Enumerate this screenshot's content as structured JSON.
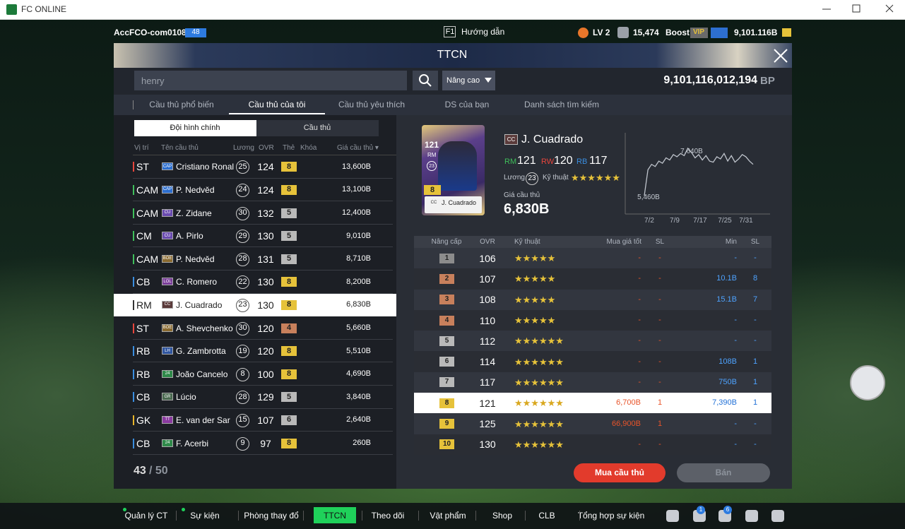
{
  "window": {
    "title": "FC ONLINE"
  },
  "topbar": {
    "account": "AccFCO-com0108c",
    "account_badge": "48",
    "help_key": "F1",
    "help": "Hướng dẫn",
    "level": "LV 2",
    "coins": "15,474",
    "boost": "Boost",
    "vip": "VIP",
    "bp": "9,101.116B"
  },
  "panel": {
    "title": "TTCN",
    "search": "henry",
    "search_mode": "Nâng cao",
    "balance": "9,101,116,012,194",
    "balance_unit": "BP"
  },
  "tabs": {
    "items": [
      "Cầu thủ phổ biến",
      "Cầu thủ của tôi",
      "Cầu thủ yêu thích",
      "DS của bạn",
      "Danh sách tìm kiếm"
    ],
    "active": 1
  },
  "subtabs": {
    "items": [
      "Đội hình chính",
      "Cầu thủ"
    ],
    "active": 0
  },
  "list": {
    "columns": [
      "Vị trí",
      "Tên cầu thủ",
      "Lương",
      "OVR",
      "Thẻ",
      "Khóa",
      "Giá cầu thủ"
    ],
    "selected": 6,
    "rows": [
      {
        "pos": "ST",
        "pos_color": "#e8453c",
        "season": "CAP",
        "season_color": "#2d6fd0",
        "name": "Cristiano Ronaldo",
        "salary": 25,
        "ovr": 124,
        "grade": 8,
        "grade_color": "#e6c23a",
        "price": "13,600B"
      },
      {
        "pos": "CAM",
        "pos_color": "#3fbf5a",
        "season": "CAP",
        "season_color": "#2d6fd0",
        "name": "P. Nedvěd",
        "salary": 24,
        "ovr": 124,
        "grade": 8,
        "grade_color": "#e6c23a",
        "price": "13,100B"
      },
      {
        "pos": "CAM",
        "pos_color": "#3fbf5a",
        "season": "CU",
        "season_color": "#6a4bb0",
        "name": "Z. Zidane",
        "salary": 30,
        "ovr": 132,
        "grade": 5,
        "grade_color": "#b9b9b9",
        "price": "12,400B"
      },
      {
        "pos": "CM",
        "pos_color": "#3fbf5a",
        "season": "CU",
        "season_color": "#6a4bb0",
        "name": "A. Pirlo",
        "salary": 29,
        "ovr": 130,
        "grade": 5,
        "grade_color": "#b9b9b9",
        "price": "9,010B"
      },
      {
        "pos": "CAM",
        "pos_color": "#3fbf5a",
        "season": "BOE",
        "season_color": "#8a6a30",
        "name": "P. Nedvěd",
        "salary": 28,
        "ovr": 131,
        "grade": 5,
        "grade_color": "#b9b9b9",
        "price": "8,710B"
      },
      {
        "pos": "CB",
        "pos_color": "#3a8ee0",
        "season": "LOL",
        "season_color": "#7a3d9a",
        "name": "C. Romero",
        "salary": 22,
        "ovr": 130,
        "grade": 8,
        "grade_color": "#e6c23a",
        "price": "8,200B"
      },
      {
        "pos": "RM",
        "pos_color": "#3fbf5a",
        "season": "CC",
        "season_color": "#5a3a3a",
        "name": "J. Cuadrado",
        "salary": 23,
        "ovr": 130,
        "grade": 8,
        "grade_color": "#e6c23a",
        "price": "6,830B"
      },
      {
        "pos": "ST",
        "pos_color": "#e8453c",
        "season": "BOE",
        "season_color": "#8a6a30",
        "name": "A. Shevchenko",
        "salary": 30,
        "ovr": 120,
        "grade": 4,
        "grade_color": "#c8805c",
        "price": "5,660B"
      },
      {
        "pos": "RB",
        "pos_color": "#3a8ee0",
        "season": "LH",
        "season_color": "#3056a0",
        "name": "G. Zambrotta",
        "salary": 19,
        "ovr": 120,
        "grade": 8,
        "grade_color": "#e6c23a",
        "price": "5,510B"
      },
      {
        "pos": "RB",
        "pos_color": "#3a8ee0",
        "season": "24",
        "season_color": "#2f8a4a",
        "name": "João Cancelo",
        "salary": 8,
        "ovr": 100,
        "grade": 8,
        "grade_color": "#e6c23a",
        "price": "4,690B"
      },
      {
        "pos": "CB",
        "pos_color": "#3a8ee0",
        "season": "GR",
        "season_color": "#4a6a50",
        "name": "Lúcio",
        "salary": 28,
        "ovr": 129,
        "grade": 5,
        "grade_color": "#b9b9b9",
        "price": "3,840B"
      },
      {
        "pos": "GK",
        "pos_color": "#e8b52a",
        "season": "TT",
        "season_color": "#8a3aa0",
        "name": "E. van der Sar",
        "salary": 15,
        "ovr": 107,
        "grade": 6,
        "grade_color": "#b9b9b9",
        "price": "2,640B"
      },
      {
        "pos": "CB",
        "pos_color": "#3a8ee0",
        "season": "24",
        "season_color": "#2f8a4a",
        "name": "F. Acerbi",
        "salary": 9,
        "ovr": 97,
        "grade": 8,
        "grade_color": "#e6c23a",
        "price": "260B"
      }
    ],
    "count": 43,
    "capacity": "/ 50"
  },
  "detail": {
    "season": "CC",
    "name": "J. Cuadrado",
    "grade": 8,
    "positions": [
      {
        "pos": "RM",
        "ovr": 121,
        "color": "#3fbf5a"
      },
      {
        "pos": "RW",
        "ovr": 120,
        "color": "#e8453c"
      },
      {
        "pos": "RB",
        "ovr": 117,
        "color": "#3a8ee0"
      }
    ],
    "salary_label": "Lương",
    "salary": 23,
    "skill_label": "Kỹ thuật",
    "skill": 6,
    "price_label": "Giá cầu thủ",
    "price": "6,830B",
    "price_history": {
      "type": "line",
      "values": [
        5460,
        6650,
        6900,
        6800,
        7050,
        6950,
        7200,
        7100,
        7350,
        7250,
        7400,
        7300,
        7640,
        7450,
        7200,
        7350,
        7100,
        7300,
        7050,
        7000,
        7250,
        7150,
        7400,
        7050,
        7300,
        7000,
        7150,
        7350,
        7250,
        7050,
        6900
      ],
      "ylim": [
        5200,
        7800
      ],
      "max_label": "7,640B",
      "min_label": "5,460B",
      "x_labels": [
        "7/2",
        "7/9",
        "7/17",
        "7/25",
        "7/31"
      ]
    }
  },
  "upgrades": {
    "columns": [
      "Nâng cấp",
      "OVR",
      "Kỹ thuật",
      "Mua giá tốt",
      "SL",
      "Min",
      "SL"
    ],
    "selected": 7,
    "rows": [
      {
        "level": 1,
        "color": "#8c8c8c",
        "ovr": 106,
        "stars": 5,
        "buy": "-",
        "buy_sl": "-",
        "min": "-",
        "min_sl": "-"
      },
      {
        "level": 2,
        "color": "#c8805c",
        "ovr": 107,
        "stars": 5,
        "buy": "-",
        "buy_sl": "-",
        "min": "10.1B",
        "min_sl": "8"
      },
      {
        "level": 3,
        "color": "#c8805c",
        "ovr": 108,
        "stars": 5,
        "buy": "-",
        "buy_sl": "-",
        "min": "15.1B",
        "min_sl": "7"
      },
      {
        "level": 4,
        "color": "#c8805c",
        "ovr": 110,
        "stars": 5,
        "buy": "-",
        "buy_sl": "-",
        "min": "-",
        "min_sl": "-"
      },
      {
        "level": 5,
        "color": "#b9b9b9",
        "ovr": 112,
        "stars": 6,
        "buy": "-",
        "buy_sl": "-",
        "min": "-",
        "min_sl": "-"
      },
      {
        "level": 6,
        "color": "#b9b9b9",
        "ovr": 114,
        "stars": 6,
        "buy": "-",
        "buy_sl": "-",
        "min": "108B",
        "min_sl": "1"
      },
      {
        "level": 7,
        "color": "#b9b9b9",
        "ovr": 117,
        "stars": 6,
        "buy": "-",
        "buy_sl": "-",
        "min": "750B",
        "min_sl": "1"
      },
      {
        "level": 8,
        "color": "#e6c23a",
        "ovr": 121,
        "stars": 6,
        "buy": "6,700B",
        "buy_sl": "1",
        "min": "7,390B",
        "min_sl": "1"
      },
      {
        "level": 9,
        "color": "#e6c23a",
        "ovr": 125,
        "stars": 6,
        "buy": "66,900B",
        "buy_sl": "1",
        "min": "-",
        "min_sl": "-"
      },
      {
        "level": 10,
        "color": "#e6c23a",
        "ovr": 130,
        "stars": 6,
        "buy": "-",
        "buy_sl": "-",
        "min": "-",
        "min_sl": "-"
      }
    ]
  },
  "buttons": {
    "buy": "Mua cầu thủ",
    "sell": "Bán"
  },
  "nav": {
    "items": [
      "Quản lý CT",
      "Sự kiện",
      "Phòng thay đổ",
      "TTCN",
      "Theo dõi",
      "Vật phẩm",
      "Shop",
      "CLB",
      "Tổng hợp sự kiện"
    ],
    "active": 3,
    "badges": [
      "1",
      "6"
    ]
  }
}
